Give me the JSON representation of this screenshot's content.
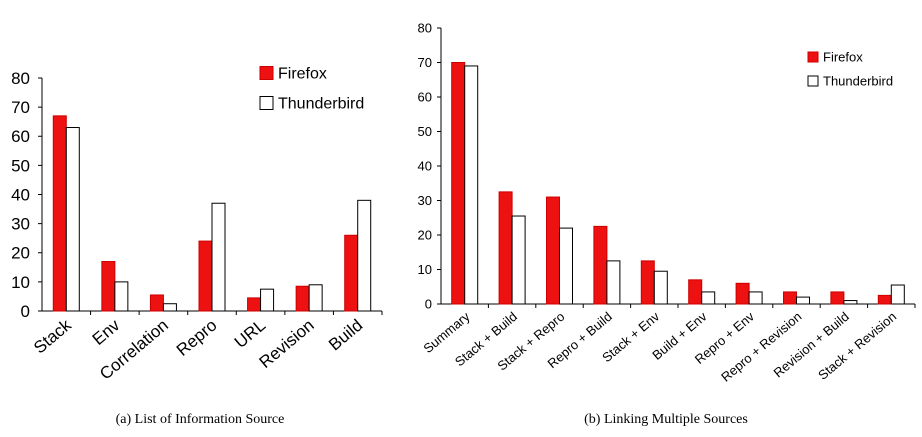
{
  "chart_data": [
    {
      "type": "bar",
      "caption": "(a)  List of Information Source",
      "categories": [
        "Stack",
        "Env",
        "Correlation",
        "Repro",
        "URL",
        "Revision",
        "Build"
      ],
      "series": [
        {
          "name": "Firefox",
          "values": [
            67,
            17,
            5.5,
            24,
            4.5,
            8.5,
            26
          ],
          "color": "#ee1111"
        },
        {
          "name": "Thunderbird",
          "values": [
            63,
            10,
            2.5,
            37,
            7.5,
            9,
            38
          ],
          "color": "#ffffff"
        }
      ],
      "ylim": [
        0,
        80
      ],
      "yticks": [
        0,
        10,
        20,
        30,
        40,
        50,
        60,
        70,
        80
      ],
      "legend_position": "top-right"
    },
    {
      "type": "bar",
      "caption": "(b)  Linking Multiple Sources",
      "categories": [
        "Summary",
        "Stack + Build",
        "Stack + Repro",
        "Repro + Build",
        "Stack + Env",
        "Build + Env",
        "Repro + Env",
        "Repro + Revision",
        "Revision + Build",
        "Stack + Revision"
      ],
      "series": [
        {
          "name": "Firefox",
          "values": [
            70,
            32.5,
            31,
            22.5,
            12.5,
            7,
            6,
            3.5,
            3.5,
            2.5
          ],
          "color": "#ee1111"
        },
        {
          "name": "Thunderbird",
          "values": [
            69,
            25.5,
            22,
            12.5,
            9.5,
            3.5,
            3.5,
            2,
            1,
            5.5
          ],
          "color": "#ffffff"
        }
      ],
      "ylim": [
        0,
        80
      ],
      "yticks": [
        0,
        10,
        20,
        30,
        40,
        50,
        60,
        70,
        80
      ],
      "legend_position": "top-right"
    }
  ]
}
